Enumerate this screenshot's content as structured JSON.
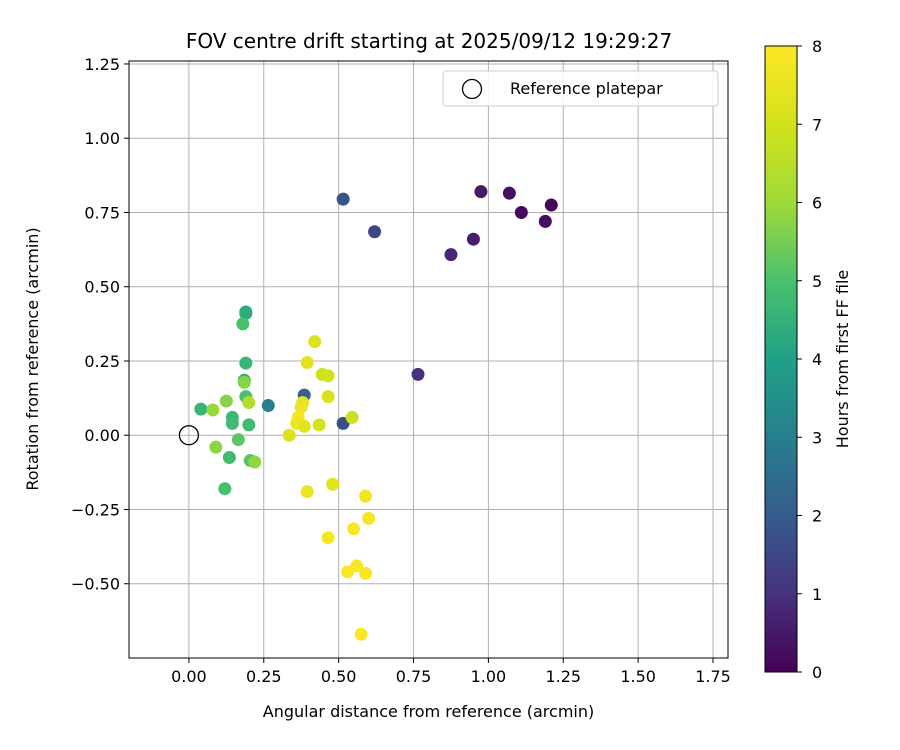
{
  "chart_data": {
    "type": "scatter",
    "title": "FOV centre drift starting at 2025/09/12 19:29:27",
    "xlabel": "Angular distance from reference (arcmin)",
    "ylabel": "Rotation from reference (arcmin)",
    "xlim": [
      -0.2,
      1.8
    ],
    "ylim": [
      -0.75,
      1.26
    ],
    "xticks": [
      0.0,
      0.25,
      0.5,
      0.75,
      1.0,
      1.25,
      1.5,
      1.75
    ],
    "yticks": [
      -0.5,
      -0.25,
      0.0,
      0.25,
      0.5,
      0.75,
      1.0,
      1.25
    ],
    "xtick_labels": [
      "0.00",
      "0.25",
      "0.50",
      "0.75",
      "1.00",
      "1.25",
      "1.50",
      "1.75"
    ],
    "ytick_labels": [
      "−0.50",
      "−0.25",
      "0.00",
      "0.25",
      "0.50",
      "0.75",
      "1.00",
      "1.25"
    ],
    "grid": true,
    "colormap": "viridis",
    "colorbar": {
      "label": "Hours from first FF file",
      "min": 0,
      "max": 8,
      "ticks": [
        0,
        1,
        2,
        3,
        4,
        5,
        6,
        7,
        8
      ],
      "tick_labels": [
        "0",
        "1",
        "2",
        "3",
        "4",
        "5",
        "6",
        "7",
        "8"
      ]
    },
    "legend": {
      "position": "top-right",
      "entries": [
        {
          "label": "Reference platepar",
          "marker": "open-circle"
        }
      ]
    },
    "reference_point": {
      "x": 0.0,
      "y": 0.0
    },
    "points": [
      {
        "x": 1.21,
        "y": 0.775,
        "c": 0.15
      },
      {
        "x": 1.07,
        "y": 0.815,
        "c": 0.3
      },
      {
        "x": 1.11,
        "y": 0.75,
        "c": 0.2
      },
      {
        "x": 1.19,
        "y": 0.72,
        "c": 0.25
      },
      {
        "x": 0.975,
        "y": 0.82,
        "c": 0.5
      },
      {
        "x": 0.95,
        "y": 0.66,
        "c": 0.6
      },
      {
        "x": 0.875,
        "y": 0.608,
        "c": 0.8
      },
      {
        "x": 0.765,
        "y": 0.205,
        "c": 1.0
      },
      {
        "x": 0.62,
        "y": 0.685,
        "c": 1.5
      },
      {
        "x": 0.515,
        "y": 0.795,
        "c": 1.8
      },
      {
        "x": 0.515,
        "y": 0.04,
        "c": 1.7
      },
      {
        "x": 0.385,
        "y": 0.135,
        "c": 2.2
      },
      {
        "x": 0.265,
        "y": 0.1,
        "c": 3.0
      },
      {
        "x": 0.19,
        "y": 0.415,
        "c": 4.2
      },
      {
        "x": 0.19,
        "y": 0.41,
        "c": 4.3
      },
      {
        "x": 0.18,
        "y": 0.375,
        "c": 5.0
      },
      {
        "x": 0.19,
        "y": 0.243,
        "c": 4.6
      },
      {
        "x": 0.185,
        "y": 0.185,
        "c": 4.4
      },
      {
        "x": 0.185,
        "y": 0.178,
        "c": 5.7
      },
      {
        "x": 0.19,
        "y": 0.13,
        "c": 5.0
      },
      {
        "x": 0.2,
        "y": 0.11,
        "c": 6.4
      },
      {
        "x": 0.2,
        "y": 0.035,
        "c": 4.8
      },
      {
        "x": 0.145,
        "y": 0.06,
        "c": 4.7
      },
      {
        "x": 0.145,
        "y": 0.04,
        "c": 4.8
      },
      {
        "x": 0.04,
        "y": 0.088,
        "c": 4.6
      },
      {
        "x": 0.08,
        "y": 0.085,
        "c": 5.9
      },
      {
        "x": 0.125,
        "y": 0.115,
        "c": 5.7
      },
      {
        "x": 0.165,
        "y": -0.015,
        "c": 5.2
      },
      {
        "x": 0.09,
        "y": -0.04,
        "c": 5.8
      },
      {
        "x": 0.135,
        "y": -0.075,
        "c": 4.8
      },
      {
        "x": 0.205,
        "y": -0.085,
        "c": 5.1
      },
      {
        "x": 0.22,
        "y": -0.09,
        "c": 5.8
      },
      {
        "x": 0.12,
        "y": -0.18,
        "c": 4.9
      },
      {
        "x": 0.42,
        "y": 0.315,
        "c": 7.2
      },
      {
        "x": 0.395,
        "y": 0.245,
        "c": 7.4
      },
      {
        "x": 0.445,
        "y": 0.205,
        "c": 6.9
      },
      {
        "x": 0.465,
        "y": 0.2,
        "c": 7.0
      },
      {
        "x": 0.465,
        "y": 0.13,
        "c": 7.2
      },
      {
        "x": 0.38,
        "y": 0.11,
        "c": 7.5
      },
      {
        "x": 0.375,
        "y": 0.095,
        "c": 7.6
      },
      {
        "x": 0.365,
        "y": 0.06,
        "c": 7.8
      },
      {
        "x": 0.36,
        "y": 0.04,
        "c": 7.6
      },
      {
        "x": 0.385,
        "y": 0.03,
        "c": 7.4
      },
      {
        "x": 0.335,
        "y": 0.0,
        "c": 7.2
      },
      {
        "x": 0.435,
        "y": 0.035,
        "c": 7.1
      },
      {
        "x": 0.545,
        "y": 0.06,
        "c": 6.9
      },
      {
        "x": 0.48,
        "y": -0.165,
        "c": 7.3
      },
      {
        "x": 0.395,
        "y": -0.19,
        "c": 7.6
      },
      {
        "x": 0.59,
        "y": -0.205,
        "c": 7.7
      },
      {
        "x": 0.6,
        "y": -0.28,
        "c": 7.8
      },
      {
        "x": 0.55,
        "y": -0.315,
        "c": 7.9
      },
      {
        "x": 0.465,
        "y": -0.345,
        "c": 7.8
      },
      {
        "x": 0.56,
        "y": -0.44,
        "c": 7.9
      },
      {
        "x": 0.53,
        "y": -0.46,
        "c": 7.95
      },
      {
        "x": 0.59,
        "y": -0.465,
        "c": 7.9
      },
      {
        "x": 0.575,
        "y": -0.67,
        "c": 7.9
      }
    ]
  }
}
